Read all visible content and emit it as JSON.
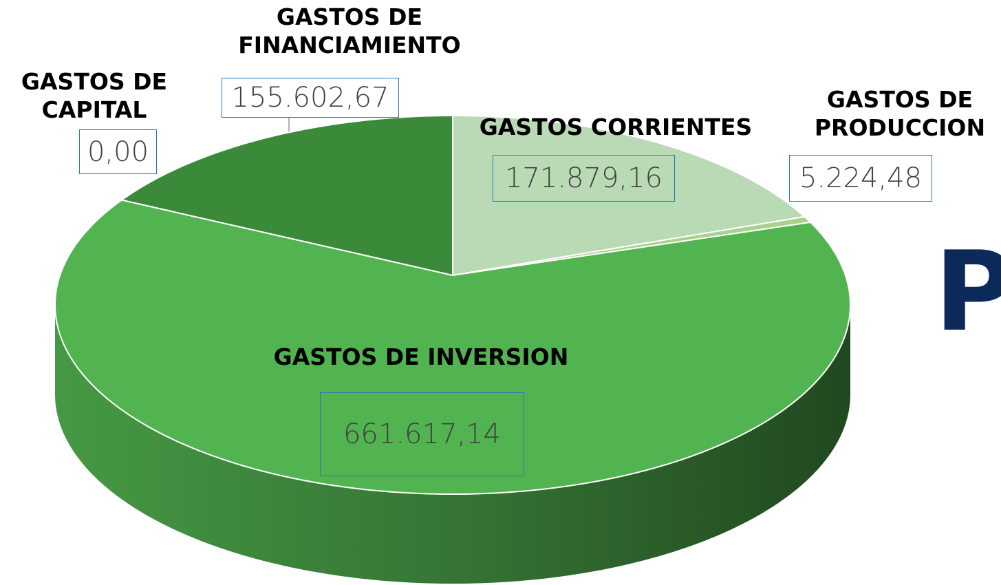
{
  "chart_data": {
    "type": "pie3d",
    "categories": [
      "GASTOS CORRIENTES",
      "GASTOS DE PRODUCCION",
      "GASTOS DE INVERSION",
      "GASTOS DE CAPITAL",
      "GASTOS DE FINANCIAMIENTO"
    ],
    "values": [
      171879.16,
      5224.48,
      661617.14,
      0.0,
      155602.67
    ],
    "value_labels": [
      "171.879,16",
      "5.224,48",
      "661.617,14",
      "0,00",
      "155.602,67"
    ],
    "colors": [
      "#b9dab5",
      "#a9d18e",
      "#52b450",
      "#2f6f2e",
      "#3b8a3a"
    ],
    "side_text": "P"
  }
}
